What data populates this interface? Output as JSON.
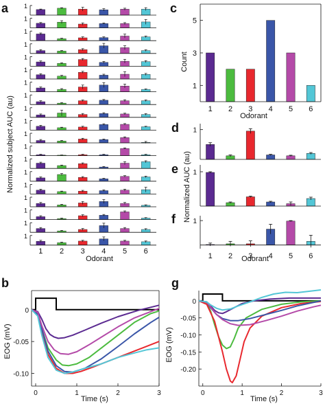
{
  "palette": [
    "#5b2a91",
    "#4cbb3f",
    "#e8282e",
    "#3a56a8",
    "#b44aa8",
    "#53c6d6"
  ],
  "panel_labels": {
    "a": "a",
    "b": "b",
    "c": "c",
    "d": "d",
    "e": "e",
    "f": "f",
    "g": "g"
  },
  "chart_data": [
    {
      "panel": "a",
      "type": "bar",
      "categories": [
        "1",
        "2",
        "3",
        "4",
        "5",
        "6"
      ],
      "xlabel": "Odorant",
      "ylabel": "Normalized subject AUC (au)",
      "ytick": "1",
      "ylim": [
        0,
        1
      ],
      "subjects": [
        {
          "values": [
            0.58,
            0.72,
            0.62,
            0.55,
            0.62,
            0.62
          ],
          "errors": [
            0.05,
            0.05,
            0.2,
            0.12,
            0.1,
            0.15
          ]
        },
        {
          "values": [
            0.48,
            0.6,
            0.4,
            0.45,
            0.45,
            0.62
          ],
          "errors": [
            0.08,
            0.15,
            0.12,
            0.06,
            0.1,
            0.25
          ]
        },
        {
          "values": [
            0.7,
            0.2,
            0.3,
            0.32,
            0.48,
            0.4
          ],
          "errors": [
            0.1,
            0.05,
            0.1,
            0.08,
            0.2,
            0.08
          ]
        },
        {
          "values": [
            0.3,
            0.25,
            0.4,
            0.8,
            0.6,
            0.3
          ],
          "errors": [
            0.1,
            0.05,
            0.1,
            0.25,
            0.2,
            0.08
          ]
        },
        {
          "values": [
            0.45,
            0.3,
            0.7,
            0.4,
            0.52,
            0.48
          ],
          "errors": [
            0.1,
            0.05,
            0.1,
            0.1,
            0.2,
            0.1
          ]
        },
        {
          "values": [
            0.45,
            0.3,
            0.7,
            0.4,
            0.5,
            0.48
          ],
          "errors": [
            0.1,
            0.08,
            0.1,
            0.1,
            0.25,
            0.1
          ]
        },
        {
          "values": [
            0.4,
            0.25,
            0.5,
            0.7,
            0.6,
            0.25
          ],
          "errors": [
            0.1,
            0.08,
            0.2,
            0.25,
            0.2,
            0.05
          ]
        },
        {
          "values": [
            0.3,
            0.15,
            0.4,
            0.45,
            0.4,
            0.4
          ],
          "errors": [
            0.1,
            0.05,
            0.08,
            0.08,
            0.1,
            0.08
          ]
        },
        {
          "values": [
            0.25,
            0.45,
            0.3,
            0.4,
            0.35,
            0.3
          ],
          "errors": [
            0.1,
            0.3,
            0.1,
            0.08,
            0.08,
            0.08
          ]
        },
        {
          "values": [
            0.4,
            0.25,
            0.32,
            0.58,
            0.6,
            0.35
          ],
          "errors": [
            0.1,
            0.05,
            0.08,
            0.08,
            0.08,
            0.05
          ]
        },
        {
          "values": [
            0.25,
            0.2,
            0.4,
            0.35,
            0.55,
            0.05
          ],
          "errors": [
            0.1,
            0.05,
            0.08,
            0.05,
            0.08,
            0.1
          ]
        },
        {
          "values": [
            0.1,
            0.05,
            0.1,
            0.1,
            0.75,
            0.1
          ],
          "errors": [
            0.04,
            0.02,
            0.04,
            0.04,
            0.06,
            0.04
          ]
        },
        {
          "values": [
            0.55,
            0.3,
            0.5,
            0.15,
            0.55,
            0.7
          ],
          "errors": [
            0.1,
            0.05,
            0.08,
            0.05,
            0.15,
            0.1
          ]
        },
        {
          "values": [
            0.35,
            0.7,
            0.4,
            0.25,
            0.5,
            0.45
          ],
          "errors": [
            0.1,
            0.1,
            0.08,
            0.05,
            0.08,
            0.08
          ]
        },
        {
          "values": [
            0.4,
            0.25,
            0.3,
            0.35,
            0.4,
            0.45
          ],
          "errors": [
            0.1,
            0.05,
            0.08,
            0.08,
            0.1,
            0.25
          ]
        },
        {
          "values": [
            0.35,
            0.2,
            0.4,
            0.55,
            0.35,
            0.15
          ],
          "errors": [
            0.1,
            0.05,
            0.15,
            0.2,
            0.1,
            0.05
          ]
        },
        {
          "values": [
            0.3,
            0.1,
            0.4,
            0.45,
            0.8,
            0.15
          ],
          "errors": [
            0.1,
            0.05,
            0.1,
            0.08,
            0.1,
            0.05
          ]
        },
        {
          "values": [
            0.4,
            0.15,
            0.3,
            0.7,
            0.4,
            0.3
          ],
          "errors": [
            0.1,
            0.05,
            0.1,
            0.25,
            0.1,
            0.08
          ]
        },
        {
          "values": [
            0.4,
            0.25,
            0.42,
            0.65,
            0.42,
            0.35
          ],
          "errors": [
            0.1,
            0.05,
            0.08,
            0.2,
            0.08,
            0.08
          ]
        }
      ]
    },
    {
      "panel": "c",
      "type": "bar",
      "categories": [
        "1",
        "2",
        "3",
        "4",
        "5",
        "6"
      ],
      "values": [
        3,
        2,
        2,
        5,
        3,
        1
      ],
      "xlabel": "Odorant",
      "ylabel": "Count",
      "yticks": [
        1,
        3,
        5
      ],
      "ylim": [
        0,
        6
      ]
    },
    {
      "panel": "d",
      "type": "bar",
      "categories": [
        "1",
        "2",
        "3",
        "4",
        "5",
        "6"
      ],
      "values": [
        0.5,
        0.12,
        0.95,
        0.15,
        0.12,
        0.2
      ],
      "errors": [
        0.06,
        0.03,
        0.08,
        0.02,
        0.02,
        0.03
      ],
      "yticks": [
        "1"
      ],
      "ylim": [
        0,
        1.2
      ]
    },
    {
      "panel": "e",
      "type": "bar",
      "categories": [
        "1",
        "2",
        "3",
        "4",
        "5",
        "6"
      ],
      "values": [
        0.98,
        0.1,
        0.27,
        0.12,
        0.07,
        0.22
      ],
      "errors": [
        0.02,
        0.02,
        0.02,
        0.02,
        0.05,
        0.04
      ],
      "yticks": [
        "1"
      ],
      "ylim": [
        0,
        1.2
      ],
      "ylabel": "Normalized AUC (au)"
    },
    {
      "panel": "f",
      "type": "bar",
      "categories": [
        "1",
        "2",
        "3",
        "4",
        "5",
        "6"
      ],
      "values": [
        0.02,
        0.05,
        0.05,
        0.65,
        0.98,
        0.15
      ],
      "errors": [
        0.06,
        0.1,
        0.12,
        0.2,
        0.02,
        0.25
      ],
      "yticks": [
        "1"
      ],
      "ylim": [
        -0.15,
        1.2
      ],
      "xlabel": "Odorant"
    },
    {
      "panel": "b",
      "type": "line",
      "xlabel": "Time (s)",
      "ylabel": "EOG (mV)",
      "xlim": [
        -0.1,
        3
      ],
      "ylim": [
        -0.12,
        0.03
      ],
      "xticks": [
        0,
        1,
        2,
        3
      ],
      "yticks": [
        0,
        -0.05,
        -0.1
      ],
      "ytick_labels": [
        "0",
        "-0.05",
        "-0.10"
      ],
      "stimulus": {
        "on": 0,
        "off": 0.5,
        "height": 0.018
      },
      "series": [
        {
          "x": [
            -0.1,
            0.05,
            0.15,
            0.25,
            0.35,
            0.45,
            0.55,
            0.7,
            0.9,
            1.2,
            1.6,
            2.0,
            2.5,
            3.0
          ],
          "y": [
            0.0,
            -0.003,
            -0.015,
            -0.03,
            -0.039,
            -0.043,
            -0.045,
            -0.044,
            -0.04,
            -0.032,
            -0.021,
            -0.011,
            -0.001,
            0.007
          ]
        },
        {
          "x": [
            -0.1,
            0.05,
            0.15,
            0.3,
            0.5,
            0.65,
            0.8,
            1.0,
            1.3,
            1.6,
            2.0,
            2.4,
            2.8,
            3.0
          ],
          "y": [
            0.0,
            -0.006,
            -0.03,
            -0.06,
            -0.079,
            -0.087,
            -0.088,
            -0.085,
            -0.075,
            -0.06,
            -0.04,
            -0.02,
            -0.006,
            -0.002
          ]
        },
        {
          "x": [
            -0.1,
            0.05,
            0.15,
            0.3,
            0.5,
            0.7,
            0.9,
            1.1,
            1.4,
            1.8,
            2.2,
            2.6,
            3.0
          ],
          "y": [
            0.0,
            -0.008,
            -0.035,
            -0.07,
            -0.092,
            -0.1,
            -0.1,
            -0.097,
            -0.09,
            -0.08,
            -0.07,
            -0.06,
            -0.05
          ]
        },
        {
          "x": [
            -0.1,
            0.05,
            0.15,
            0.3,
            0.5,
            0.7,
            0.9,
            1.2,
            1.6,
            2.0,
            2.4,
            2.8,
            3.0
          ],
          "y": [
            0.0,
            -0.007,
            -0.03,
            -0.065,
            -0.088,
            -0.097,
            -0.098,
            -0.092,
            -0.077,
            -0.058,
            -0.038,
            -0.02,
            -0.012
          ]
        },
        {
          "x": [
            -0.1,
            0.05,
            0.15,
            0.3,
            0.45,
            0.6,
            0.8,
            1.0,
            1.3,
            1.6,
            2.0,
            2.4,
            2.8,
            3.0
          ],
          "y": [
            0.0,
            -0.004,
            -0.025,
            -0.05,
            -0.063,
            -0.069,
            -0.07,
            -0.066,
            -0.055,
            -0.043,
            -0.027,
            -0.013,
            -0.003,
            0.002
          ]
        },
        {
          "x": [
            -0.1,
            0.05,
            0.15,
            0.3,
            0.5,
            0.7,
            0.9,
            1.2,
            1.6,
            2.0,
            2.4,
            2.7,
            3.0
          ],
          "y": [
            0.0,
            -0.01,
            -0.04,
            -0.075,
            -0.095,
            -0.1,
            -0.098,
            -0.092,
            -0.085,
            -0.075,
            -0.068,
            -0.063,
            -0.06
          ]
        }
      ]
    },
    {
      "panel": "g",
      "type": "line",
      "xlabel": "Time (s)",
      "ylabel": "EOG (mV)",
      "xlim": [
        -0.1,
        3
      ],
      "ylim": [
        -0.25,
        0.03
      ],
      "xticks": [
        0,
        1,
        2,
        3
      ],
      "yticks": [
        0,
        -0.05,
        -0.1,
        -0.15,
        -0.2
      ],
      "ytick_labels": [
        "0",
        "-0.05",
        "-0.10",
        "-0.15",
        "-0.20"
      ],
      "stimulus": {
        "on": 0,
        "off": 0.5,
        "height": 0.02
      },
      "series": [
        {
          "x": [
            -0.1,
            0.1,
            0.2,
            0.3,
            0.4,
            0.5,
            0.6,
            0.8,
            1.0,
            1.3,
            1.7,
            2.2,
            2.6,
            3.0
          ],
          "y": [
            0.0,
            -0.003,
            -0.015,
            -0.028,
            -0.035,
            -0.037,
            -0.032,
            -0.02,
            -0.008,
            0.0,
            0.005,
            0.008,
            0.008,
            0.008
          ]
        },
        {
          "x": [
            -0.1,
            0.1,
            0.2,
            0.3,
            0.4,
            0.5,
            0.6,
            0.7,
            0.8,
            0.9,
            1.1,
            1.5,
            2.0,
            2.5,
            3.0
          ],
          "y": [
            0.0,
            -0.005,
            -0.03,
            -0.07,
            -0.105,
            -0.13,
            -0.14,
            -0.135,
            -0.11,
            -0.08,
            -0.05,
            -0.025,
            -0.01,
            -0.003,
            0.0
          ]
        },
        {
          "x": [
            -0.1,
            0.1,
            0.3,
            0.5,
            0.6,
            0.7,
            0.75,
            0.85,
            0.95,
            1.05,
            1.2,
            1.5,
            2.0,
            2.5,
            3.0
          ],
          "y": [
            0.0,
            -0.01,
            -0.06,
            -0.15,
            -0.2,
            -0.235,
            -0.24,
            -0.22,
            -0.17,
            -0.12,
            -0.08,
            -0.045,
            -0.02,
            -0.008,
            -0.002
          ]
        },
        {
          "x": [
            -0.1,
            0.1,
            0.2,
            0.35,
            0.5,
            0.7,
            0.9,
            1.2,
            1.6,
            2.0,
            2.4,
            2.8,
            3.0
          ],
          "y": [
            0.0,
            -0.004,
            -0.02,
            -0.04,
            -0.052,
            -0.058,
            -0.058,
            -0.052,
            -0.04,
            -0.028,
            -0.015,
            -0.005,
            0.0
          ]
        },
        {
          "x": [
            -0.1,
            0.1,
            0.2,
            0.35,
            0.5,
            0.7,
            0.9,
            1.2,
            1.6,
            2.0,
            2.4,
            2.8,
            3.0
          ],
          "y": [
            0.0,
            -0.004,
            -0.018,
            -0.04,
            -0.055,
            -0.067,
            -0.072,
            -0.07,
            -0.058,
            -0.045,
            -0.03,
            -0.018,
            -0.013
          ]
        },
        {
          "x": [
            -0.1,
            0.1,
            0.2,
            0.35,
            0.5,
            0.7,
            0.9,
            1.2,
            1.5,
            1.8,
            2.1,
            2.4,
            2.7,
            3.0
          ],
          "y": [
            0.0,
            -0.003,
            -0.012,
            -0.022,
            -0.027,
            -0.024,
            -0.015,
            -0.003,
            0.01,
            0.02,
            0.025,
            0.024,
            0.028,
            0.032
          ]
        }
      ]
    }
  ]
}
